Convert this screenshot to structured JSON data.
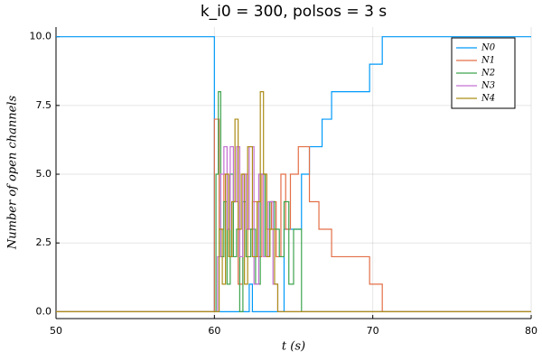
{
  "chart_data": {
    "type": "step",
    "title": "k_i0 = 300, polsos = 3 s",
    "x_label": "t (s)",
    "y_label": "Number of open channels",
    "xlim": [
      50,
      80
    ],
    "ylim": [
      -0.25,
      10.35
    ],
    "xticks": [
      50,
      60,
      70,
      80
    ],
    "yticks": [
      {
        "value": 0,
        "label": "0.0"
      },
      {
        "value": 2.5,
        "label": "2.5"
      },
      {
        "value": 5,
        "label": "5.0"
      },
      {
        "value": 7.5,
        "label": "7.5"
      },
      {
        "value": 10,
        "label": "10.0"
      }
    ],
    "grid": true,
    "legend": "top-right",
    "series": [
      {
        "name": "N0",
        "color": "#009afa",
        "x": [
          50,
          60,
          62.2,
          62.4,
          64.4,
          65.5,
          66,
          66.8,
          67.4,
          69.8,
          70.6,
          80
        ],
        "values": [
          10,
          0,
          1,
          0,
          3,
          5,
          6,
          7,
          8,
          9,
          10,
          10
        ]
      },
      {
        "name": "N1",
        "color": "#e36f47",
        "x": [
          50,
          60,
          60.3,
          60.6,
          60.9,
          61.2,
          61.5,
          61.8,
          62.1,
          62.4,
          62.7,
          63.0,
          63.3,
          63.6,
          63.9,
          64.2,
          64.5,
          64.8,
          65.3,
          66.0,
          66.6,
          67.4,
          69.8,
          70.6,
          80
        ],
        "values": [
          0,
          7,
          3,
          5,
          2,
          4,
          1,
          5,
          3,
          4,
          2,
          5,
          3,
          4,
          2,
          5,
          3,
          5,
          6,
          4,
          3,
          2,
          1,
          0,
          0
        ]
      },
      {
        "name": "N2",
        "color": "#3ea44e",
        "x": [
          50,
          60.1,
          60.25,
          60.4,
          60.6,
          60.8,
          61.0,
          61.2,
          61.4,
          61.6,
          61.8,
          62.0,
          62.3,
          62.6,
          62.9,
          63.2,
          63.5,
          63.8,
          64.1,
          64.4,
          64.7,
          65.0,
          65.5,
          80
        ],
        "values": [
          0,
          5,
          8,
          2,
          4,
          1,
          5,
          2,
          3,
          0,
          4,
          2,
          3,
          1,
          5,
          2,
          4,
          3,
          2,
          4,
          1,
          3,
          0,
          0
        ]
      },
      {
        "name": "N3",
        "color": "#c371d2",
        "x": [
          50,
          60.2,
          60.4,
          60.6,
          60.8,
          61.0,
          61.2,
          61.4,
          61.6,
          61.8,
          62.0,
          62.2,
          62.5,
          62.8,
          63.1,
          63.4,
          63.7,
          64.0,
          80
        ],
        "values": [
          0,
          2,
          5,
          6,
          3,
          6,
          4,
          6,
          2,
          5,
          3,
          6,
          1,
          5,
          2,
          4,
          1,
          0,
          0
        ]
      },
      {
        "name": "N4",
        "color": "#ac8e18",
        "x": [
          50,
          60.3,
          60.5,
          60.7,
          60.9,
          61.1,
          61.3,
          61.5,
          61.7,
          61.9,
          62.1,
          62.4,
          62.7,
          62.9,
          63.1,
          63.3,
          63.5,
          63.8,
          64.0,
          80
        ],
        "values": [
          0,
          3,
          1,
          5,
          2,
          4,
          7,
          3,
          5,
          1,
          6,
          2,
          4,
          8,
          5,
          2,
          3,
          1,
          0,
          0
        ]
      }
    ]
  }
}
